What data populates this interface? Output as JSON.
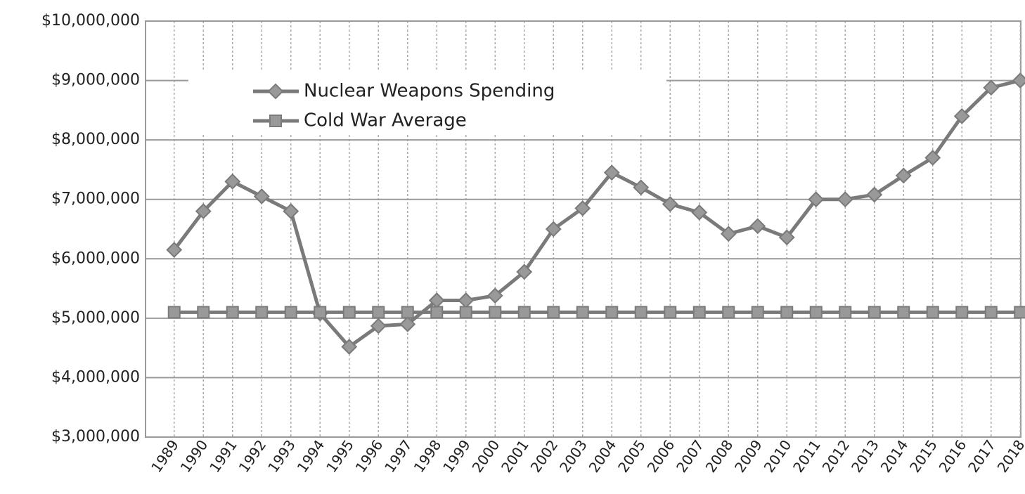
{
  "chart_data": {
    "type": "line",
    "categories": [
      "1989",
      "1990",
      "1991",
      "1992",
      "1993",
      "1994",
      "1995",
      "1996",
      "1997",
      "1998",
      "1999",
      "2000",
      "2001",
      "2002",
      "2003",
      "2004",
      "2005",
      "2006",
      "2007",
      "2008",
      "2009",
      "2010",
      "2011",
      "2012",
      "2013",
      "2014",
      "2015",
      "2016",
      "2017",
      "2018"
    ],
    "series": [
      {
        "name": "Nuclear Weapons Spending",
        "color": "#7a7a7a",
        "marker": "diamond",
        "values": [
          6150000,
          6800000,
          7300000,
          7050000,
          6800000,
          5080000,
          4520000,
          4870000,
          4900000,
          5300000,
          5300000,
          5380000,
          5780000,
          6500000,
          6850000,
          7450000,
          7200000,
          6920000,
          6780000,
          6420000,
          6550000,
          6360000,
          7000000,
          7000000,
          7080000,
          7400000,
          7700000,
          8400000,
          8880000,
          9000000
        ]
      },
      {
        "name": "Cold War Average",
        "color": "#7a7a7a",
        "marker": "square",
        "values": [
          5100000,
          5100000,
          5100000,
          5100000,
          5100000,
          5100000,
          5100000,
          5100000,
          5100000,
          5100000,
          5100000,
          5100000,
          5100000,
          5100000,
          5100000,
          5100000,
          5100000,
          5100000,
          5100000,
          5100000,
          5100000,
          5100000,
          5100000,
          5100000,
          5100000,
          5100000,
          5100000,
          5100000,
          5100000,
          5100000
        ]
      }
    ],
    "ylim": [
      3000000,
      10000000
    ],
    "yticks": [
      {
        "value": 3000000,
        "label": "$3,000,000"
      },
      {
        "value": 4000000,
        "label": "$4,000,000"
      },
      {
        "value": 5000000,
        "label": "$5,000,000"
      },
      {
        "value": 6000000,
        "label": "$6,000,000"
      },
      {
        "value": 7000000,
        "label": "$7,000,000"
      },
      {
        "value": 8000000,
        "label": "$8,000,000"
      },
      {
        "value": 9000000,
        "label": "$9,000,000"
      },
      {
        "value": 10000000,
        "label": "$10,000,000"
      }
    ],
    "grid": true,
    "legend": "top-left"
  }
}
